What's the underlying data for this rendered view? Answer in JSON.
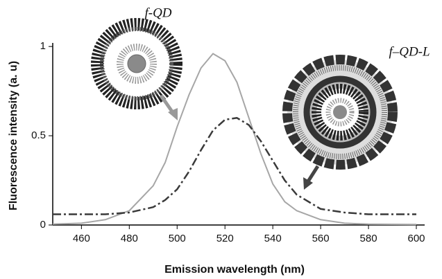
{
  "chart_data": {
    "type": "line",
    "xlabel": "Emission wavelength (nm)",
    "ylabel": "Fluorescence intensity (a. u)",
    "x": [
      448,
      460,
      470,
      480,
      490,
      495,
      500,
      505,
      510,
      515,
      520,
      525,
      530,
      535,
      540,
      545,
      550,
      560,
      570,
      580,
      600
    ],
    "series": [
      {
        "name": "f-QD",
        "color": "#a6a6a6",
        "style": "solid",
        "values": [
          0.005,
          0.01,
          0.03,
          0.08,
          0.22,
          0.35,
          0.55,
          0.73,
          0.88,
          0.96,
          0.92,
          0.8,
          0.6,
          0.4,
          0.23,
          0.13,
          0.08,
          0.03,
          0.01,
          0.005,
          0.003
        ]
      },
      {
        "name": "f–QD-L",
        "color": "#3a3a3a",
        "style": "dashdot",
        "values": [
          0.06,
          0.06,
          0.06,
          0.07,
          0.1,
          0.14,
          0.2,
          0.3,
          0.42,
          0.53,
          0.59,
          0.6,
          0.56,
          0.47,
          0.36,
          0.25,
          0.17,
          0.09,
          0.07,
          0.06,
          0.06
        ]
      }
    ],
    "xlim": [
      448,
      600
    ],
    "ylim": [
      0,
      1.02
    ],
    "xticks": [
      460,
      480,
      500,
      520,
      540,
      560,
      580,
      600
    ],
    "yticks": [
      0,
      0.5,
      1
    ]
  }
}
